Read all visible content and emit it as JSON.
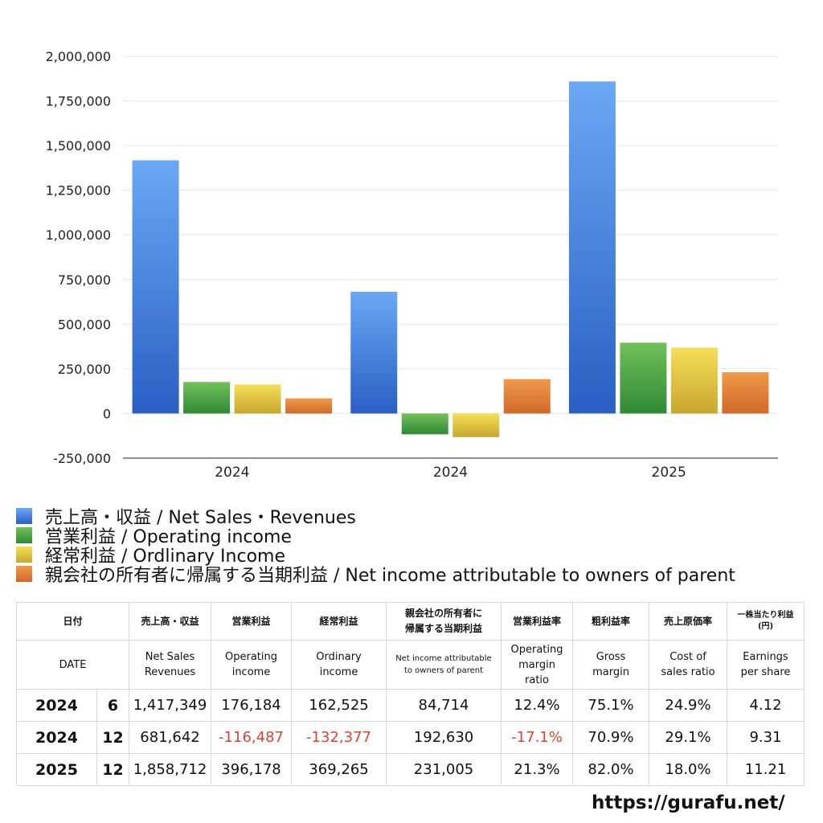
{
  "chart_data": {
    "type": "bar",
    "categories": [
      "2024",
      "2024",
      "2025"
    ],
    "series": [
      {
        "name": "売上高・収益 / Net Sales・Revenues",
        "values": [
          1417349,
          681642,
          1858712
        ],
        "color": "#3a78d8"
      },
      {
        "name": "営業利益 / Operating income",
        "values": [
          176184,
          -116487,
          396178
        ],
        "color": "#3f9a3f"
      },
      {
        "name": "経常利益 / Ordlinary Income",
        "values": [
          162525,
          -132377,
          369265
        ],
        "color": "#e0c43a"
      },
      {
        "name": "親会社の所有者に帰属する当期利益 / Net income attributable to owners of parent",
        "values": [
          84714,
          192630,
          231005
        ],
        "color": "#e07a2e"
      }
    ],
    "ylim": [
      -250000,
      2000000
    ],
    "yticks": [
      "2,000,000",
      "1,750,000",
      "1,500,000",
      "1,250,000",
      "1,000,000",
      "750,000",
      "500,000",
      "250,000",
      "0",
      "-250,000"
    ],
    "grid": true,
    "legend": "bottom"
  },
  "table": {
    "header_jp": {
      "date": "日付",
      "sales": "売上高・収益",
      "op": "営業利益",
      "ord": "経常利益",
      "net_line1": "親会社の所有者に",
      "net_line2": "帰属する当期利益",
      "op_margin": "営業利益率",
      "gross": "粗利益率",
      "cost": "売上原価率",
      "eps_line1": "一株当たり利益",
      "eps_line2": "(円)"
    },
    "header_en": {
      "date": "DATE",
      "sales_line1": "Net Sales",
      "sales_line2": "Revenues",
      "op_line1": "Operating",
      "op_line2": "income",
      "ord_line1": "Ordinary",
      "ord_line2": "income",
      "net_line1": "Net income attributable",
      "net_line2": "to owners of parent",
      "op_margin_line1": "Operating",
      "op_margin_line2": "margin",
      "op_margin_line3": "ratio",
      "gross_line1": "Gross",
      "gross_line2": "margin",
      "cost_line1": "Cost of",
      "cost_line2": "sales ratio",
      "eps_line1": "Earnings",
      "eps_line2": "per share"
    },
    "rows": [
      {
        "year": "2024",
        "month": "6",
        "sales": "1,417,349",
        "op": "176,184",
        "ord": "162,525",
        "net": "84,714",
        "op_margin": "12.4%",
        "gross": "75.1%",
        "cost": "24.9%",
        "eps": "4.12"
      },
      {
        "year": "2024",
        "month": "12",
        "sales": "681,642",
        "op": "-116,487",
        "ord": "-132,377",
        "net": "192,630",
        "op_margin": "-17.1%",
        "gross": "70.9%",
        "cost": "29.1%",
        "eps": "9.31"
      },
      {
        "year": "2025",
        "month": "12",
        "sales": "1,858,712",
        "op": "396,178",
        "ord": "369,265",
        "net": "231,005",
        "op_margin": "21.3%",
        "gross": "82.0%",
        "cost": "18.0%",
        "eps": "11.21"
      }
    ],
    "negative_color": "#d9452e"
  },
  "footer": {
    "site": "https://gurafu.net/"
  }
}
